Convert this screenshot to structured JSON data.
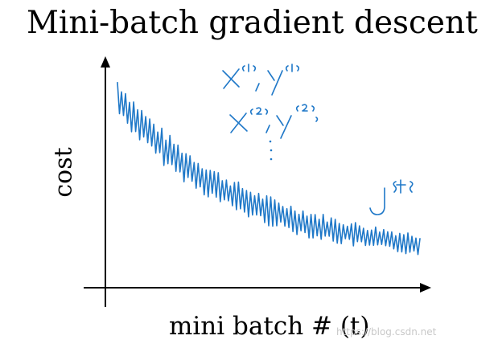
{
  "title": "Mini-batch gradient descent",
  "axes": {
    "y_label": "cost",
    "x_label": "mini batch # (t)"
  },
  "annotations": {
    "batch_1": "X{1}, Y{1}",
    "batch_2": "X{2}, Y{2}",
    "ellipsis": "⋮",
    "cost_symbol": "J{t}"
  },
  "watermark": "https://blog.csdn.net",
  "colors": {
    "ink": "#1f78c8",
    "axes": "#000000"
  }
}
